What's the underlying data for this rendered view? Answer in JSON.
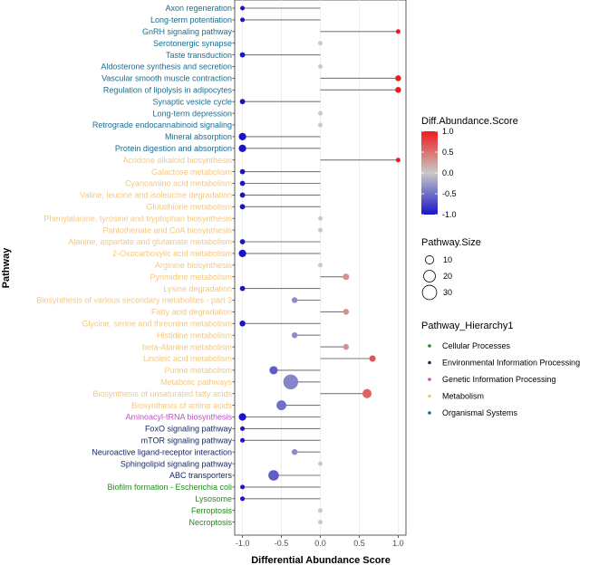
{
  "chart_data": {
    "type": "lollipop",
    "xlabel": "Differential Abundance Score",
    "ylabel": "Pathway",
    "xlim": [
      -1.1,
      1.1
    ],
    "x_ticks": [
      -1.0,
      -0.5,
      0.0,
      0.5,
      1.0
    ],
    "x_tick_labels": [
      "-1.0",
      "-0.5",
      "0.0",
      "0.5",
      "1.0"
    ],
    "grid": "vertical",
    "legend_placement": "right",
    "pathways": [
      {
        "name": "Axon regeneration",
        "score": -1.0,
        "size": 3,
        "hierarchy": "Organismal Systems"
      },
      {
        "name": "Long-term potentiation",
        "score": -1.0,
        "size": 3,
        "hierarchy": "Organismal Systems"
      },
      {
        "name": "GnRH signaling pathway",
        "score": 1.0,
        "size": 3,
        "hierarchy": "Organismal Systems"
      },
      {
        "name": "Serotonergic synapse",
        "score": 0.0,
        "size": 3,
        "hierarchy": "Organismal Systems"
      },
      {
        "name": "Taste transduction",
        "score": -1.0,
        "size": 4,
        "hierarchy": "Organismal Systems"
      },
      {
        "name": "Aldosterone synthesis and secretion",
        "score": 0.0,
        "size": 3,
        "hierarchy": "Organismal Systems"
      },
      {
        "name": "Vascular smooth muscle contraction",
        "score": 1.0,
        "size": 5,
        "hierarchy": "Organismal Systems"
      },
      {
        "name": "Regulation of lipolysis in adipocytes",
        "score": 1.0,
        "size": 5,
        "hierarchy": "Organismal Systems"
      },
      {
        "name": "Synaptic vesicle cycle",
        "score": -1.0,
        "size": 4,
        "hierarchy": "Organismal Systems"
      },
      {
        "name": "Long-term depression",
        "score": 0.0,
        "size": 3,
        "hierarchy": "Organismal Systems"
      },
      {
        "name": "Retrograde endocannabinoid signaling",
        "score": 0.0,
        "size": 3,
        "hierarchy": "Organismal Systems"
      },
      {
        "name": "Mineral absorption",
        "score": -1.0,
        "size": 8,
        "hierarchy": "Organismal Systems"
      },
      {
        "name": "Protein digestion and absorption",
        "score": -1.0,
        "size": 8,
        "hierarchy": "Organismal Systems"
      },
      {
        "name": "Acridone alkaloid biosynthesis",
        "score": 1.0,
        "size": 3,
        "hierarchy": "Metabolism"
      },
      {
        "name": "Galactose metabolism",
        "score": -1.0,
        "size": 4,
        "hierarchy": "Metabolism"
      },
      {
        "name": "Cyanoamino acid metabolism",
        "score": -1.0,
        "size": 4,
        "hierarchy": "Metabolism"
      },
      {
        "name": "Valine, leucine and isoleucine degradation",
        "score": -1.0,
        "size": 4,
        "hierarchy": "Metabolism"
      },
      {
        "name": "Glutathione metabolism",
        "score": -1.0,
        "size": 4,
        "hierarchy": "Metabolism"
      },
      {
        "name": "Phenylalanine, tyrosine and tryptophan biosynthesis",
        "score": 0.0,
        "size": 3,
        "hierarchy": "Metabolism"
      },
      {
        "name": "Pantothenate and CoA biosynthesis",
        "score": 0.0,
        "size": 3,
        "hierarchy": "Metabolism"
      },
      {
        "name": "Alanine, aspartate and glutamate metabolism",
        "score": -1.0,
        "size": 4,
        "hierarchy": "Metabolism"
      },
      {
        "name": "2-Oxocarboxylic acid metabolism",
        "score": -1.0,
        "size": 8,
        "hierarchy": "Metabolism"
      },
      {
        "name": "Arginine biosynthesis",
        "score": 0.0,
        "size": 3,
        "hierarchy": "Metabolism"
      },
      {
        "name": "Pyrimidine metabolism",
        "score": 0.33,
        "size": 6,
        "hierarchy": "Metabolism"
      },
      {
        "name": "Lysine degradation",
        "score": -1.0,
        "size": 4,
        "hierarchy": "Metabolism"
      },
      {
        "name": "Biosynthesis of various secondary metabolites - part 3",
        "score": -0.33,
        "size": 5,
        "hierarchy": "Metabolism"
      },
      {
        "name": "Fatty acid degradation",
        "score": 0.33,
        "size": 5,
        "hierarchy": "Metabolism"
      },
      {
        "name": "Glycine, serine and threonine metabolism",
        "score": -1.0,
        "size": 5,
        "hierarchy": "Metabolism"
      },
      {
        "name": "Histidine metabolism",
        "score": -0.33,
        "size": 5,
        "hierarchy": "Metabolism"
      },
      {
        "name": "beta-Alanine metabolism",
        "score": 0.33,
        "size": 5,
        "hierarchy": "Metabolism"
      },
      {
        "name": "Linoleic acid metabolism",
        "score": 0.67,
        "size": 6,
        "hierarchy": "Metabolism"
      },
      {
        "name": "Purine metabolism",
        "score": -0.6,
        "size": 10,
        "hierarchy": "Metabolism"
      },
      {
        "name": "Metabolic pathways",
        "score": -0.38,
        "size": 32,
        "hierarchy": "Metabolism"
      },
      {
        "name": "Biosynthesis of unsaturated fatty acids",
        "score": 0.6,
        "size": 12,
        "hierarchy": "Metabolism"
      },
      {
        "name": "Biosynthesis of amino acids",
        "score": -0.5,
        "size": 14,
        "hierarchy": "Metabolism"
      },
      {
        "name": "Aminoacyl-tRNA biosynthesis",
        "score": -1.0,
        "size": 8,
        "hierarchy": "Genetic Information Processing"
      },
      {
        "name": "FoxO signaling pathway",
        "score": -1.0,
        "size": 3,
        "hierarchy": "Environmental Information Processing"
      },
      {
        "name": "mTOR signaling pathway",
        "score": -1.0,
        "size": 3,
        "hierarchy": "Environmental Information Processing"
      },
      {
        "name": "Neuroactive ligand-receptor interaction",
        "score": -0.33,
        "size": 5,
        "hierarchy": "Environmental Information Processing"
      },
      {
        "name": "Sphingolipid signaling pathway",
        "score": 0.0,
        "size": 3,
        "hierarchy": "Environmental Information Processing"
      },
      {
        "name": "ABC transporters",
        "score": -0.6,
        "size": 16,
        "hierarchy": "Environmental Information Processing"
      },
      {
        "name": "Biofilm formation - Escherichia coli",
        "score": -1.0,
        "size": 3,
        "hierarchy": "Cellular Processes"
      },
      {
        "name": "Lysosome",
        "score": -1.0,
        "size": 3,
        "hierarchy": "Cellular Processes"
      },
      {
        "name": "Ferroptosis",
        "score": 0.0,
        "size": 3,
        "hierarchy": "Cellular Processes"
      },
      {
        "name": "Necroptosis",
        "score": 0.0,
        "size": 3,
        "hierarchy": "Cellular Processes"
      }
    ],
    "legends": {
      "color": {
        "title": "Diff.Abundance.Score",
        "ticks": [
          1.0,
          0.5,
          0.0,
          -0.5,
          -1.0
        ],
        "tick_labels": [
          "1.0",
          "0.5",
          "0.0",
          "-0.5",
          "-1.0"
        ],
        "colors": {
          "high": "#ee1c1c",
          "mid": "#c9c9c9",
          "low": "#1a14c8"
        }
      },
      "size": {
        "title": "Pathway.Size",
        "entries": [
          10,
          20,
          30
        ],
        "entry_labels": [
          "10",
          "20",
          "30"
        ]
      },
      "hierarchy": {
        "title": "Pathway_Hierarchy1",
        "entries": [
          {
            "label": "Cellular Processes",
            "color": "#238b22"
          },
          {
            "label": "Environmental Information Processing",
            "color": "#152a63"
          },
          {
            "label": "Genetic Information Processing",
            "color": "#c14fc3"
          },
          {
            "label": "Metabolism",
            "color": "#f4c880"
          },
          {
            "label": "Organismal Systems",
            "color": "#1a6e8f"
          }
        ]
      }
    }
  }
}
